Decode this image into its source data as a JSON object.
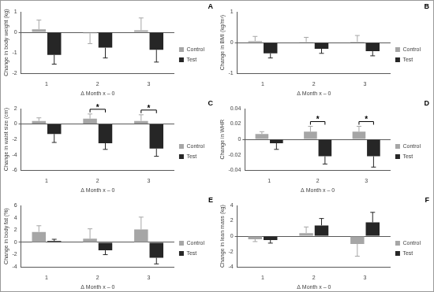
{
  "chart_data": [
    {
      "type": "bar",
      "panel": "A",
      "y_label": "Change in body weight (kg)",
      "x_label": "Δ Month x – 0",
      "categories": [
        "1",
        "2",
        "3"
      ],
      "series": [
        {
          "name": "Control",
          "color": "#a6a6a6",
          "values": [
            0.15,
            -0.05,
            0.1
          ],
          "errors": [
            0.45,
            0.5,
            0.6
          ]
        },
        {
          "name": "Test",
          "color": "#262626",
          "values": [
            -1.1,
            -0.75,
            -0.85
          ],
          "errors": [
            0.45,
            0.5,
            0.6
          ]
        }
      ],
      "ylim": [
        -2,
        1
      ],
      "yticks": [
        -2,
        -1,
        0,
        1
      ],
      "grid": false,
      "legend": "right",
      "annotations": []
    },
    {
      "type": "bar",
      "panel": "B",
      "y_label": "Change in BMI (kg/m²)",
      "x_label": "Δ Month x – 0",
      "categories": [
        "1",
        "2",
        "3"
      ],
      "series": [
        {
          "name": "Control",
          "color": "#a6a6a6",
          "values": [
            0.05,
            0.02,
            0.03
          ],
          "errors": [
            0.15,
            0.15,
            0.2
          ]
        },
        {
          "name": "Test",
          "color": "#262626",
          "values": [
            -0.35,
            -0.2,
            -0.28
          ],
          "errors": [
            0.15,
            0.15,
            0.15
          ]
        }
      ],
      "ylim": [
        -1,
        1
      ],
      "yticks": [
        -1,
        0,
        1
      ],
      "grid": false,
      "legend": "right",
      "annotations": []
    },
    {
      "type": "bar",
      "panel": "C",
      "y_label": "Change in waist size (cm)",
      "x_label": "Δ Month x – 0",
      "categories": [
        "1",
        "2",
        "3"
      ],
      "series": [
        {
          "name": "Control",
          "color": "#a6a6a6",
          "values": [
            0.4,
            0.7,
            0.4
          ],
          "errors": [
            0.4,
            0.6,
            0.8
          ]
        },
        {
          "name": "Test",
          "color": "#262626",
          "values": [
            -1.3,
            -2.5,
            -3.2
          ],
          "errors": [
            1.1,
            0.8,
            1.0
          ]
        }
      ],
      "ylim": [
        -6,
        2
      ],
      "yticks": [
        -6,
        -4,
        -2,
        0,
        2
      ],
      "grid": false,
      "legend": "right",
      "annotations": [
        {
          "category": "2",
          "text": "*"
        },
        {
          "category": "3",
          "text": "*"
        }
      ]
    },
    {
      "type": "bar",
      "panel": "D",
      "y_label": "Change in WHR",
      "x_label": "Δ Month x – 0",
      "categories": [
        "1",
        "2",
        "3"
      ],
      "series": [
        {
          "name": "Control",
          "color": "#a6a6a6",
          "values": [
            0.007,
            0.01,
            0.01
          ],
          "errors": [
            0.003,
            0.007,
            0.007
          ]
        },
        {
          "name": "Test",
          "color": "#262626",
          "values": [
            -0.005,
            -0.022,
            -0.022
          ],
          "errors": [
            0.008,
            0.01,
            0.014
          ]
        }
      ],
      "ylim": [
        -0.04,
        0.04
      ],
      "yticks": [
        -0.04,
        -0.02,
        0,
        0.02,
        0.04
      ],
      "grid": false,
      "legend": "right",
      "annotations": [
        {
          "category": "2",
          "text": "*"
        },
        {
          "category": "3",
          "text": "*"
        }
      ]
    },
    {
      "type": "bar",
      "panel": "E",
      "y_label": "Change in body fat (%)",
      "x_label": "Δ Month x – 0",
      "categories": [
        "1",
        "2",
        "3"
      ],
      "series": [
        {
          "name": "Control",
          "color": "#a6a6a6",
          "values": [
            1.7,
            0.6,
            2.1
          ],
          "errors": [
            1.0,
            1.6,
            2.0
          ]
        },
        {
          "name": "Test",
          "color": "#262626",
          "values": [
            0.2,
            -1.3,
            -2.5
          ],
          "errors": [
            0.3,
            0.7,
            1.0
          ]
        }
      ],
      "ylim": [
        -4,
        6
      ],
      "yticks": [
        -4,
        -2,
        0,
        2,
        4,
        6
      ],
      "grid": false,
      "legend": "right",
      "annotations": []
    },
    {
      "type": "bar",
      "panel": "F",
      "y_label": "Change in lean mass (kg)",
      "x_label": "Δ Month x – 0",
      "categories": [
        "1",
        "2",
        "3"
      ],
      "series": [
        {
          "name": "Control",
          "color": "#a6a6a6",
          "values": [
            -0.4,
            0.4,
            -1.0
          ],
          "errors": [
            0.3,
            0.8,
            1.6
          ]
        },
        {
          "name": "Test",
          "color": "#262626",
          "values": [
            -0.5,
            1.4,
            1.8
          ],
          "errors": [
            0.4,
            0.9,
            1.3
          ]
        }
      ],
      "ylim": [
        -4,
        4
      ],
      "yticks": [
        -4,
        -2,
        0,
        2,
        4
      ],
      "grid": false,
      "legend": "right",
      "annotations": []
    }
  ]
}
